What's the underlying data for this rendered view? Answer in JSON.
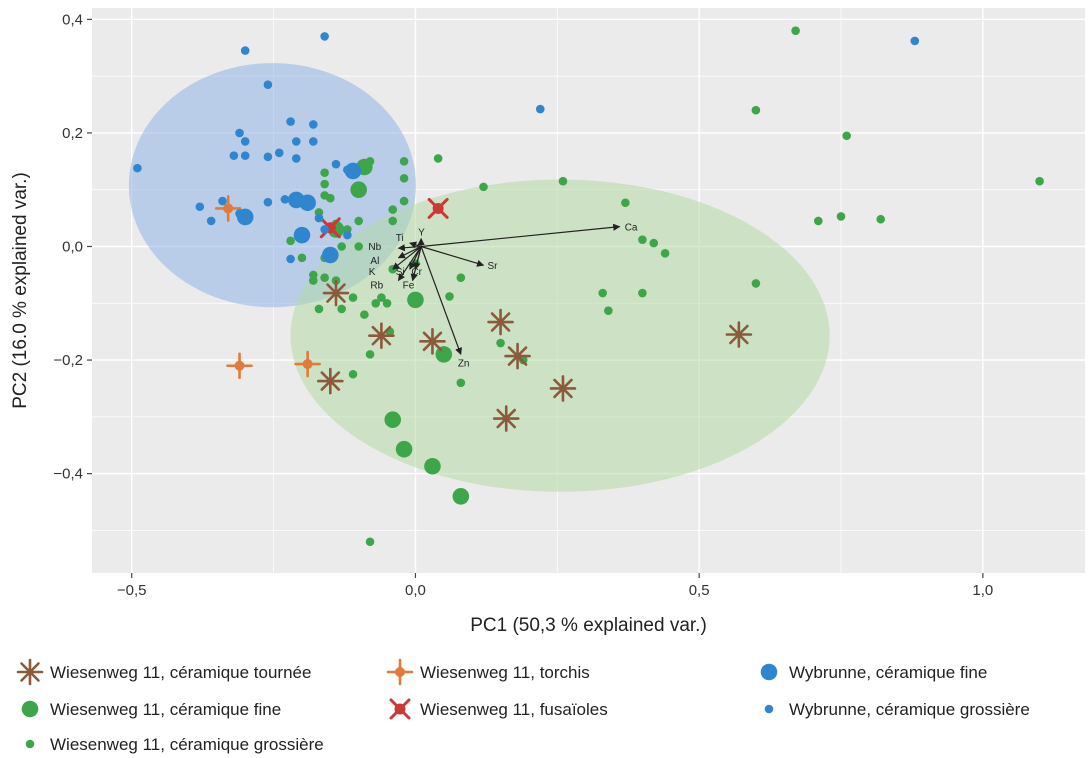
{
  "chart_data": {
    "type": "scatter",
    "xlabel": "PC1 (50,3 % explained var.)",
    "ylabel": "PC2 (16.0 % explained var.)",
    "xlim": [
      -0.57,
      1.18
    ],
    "ylim": [
      -0.575,
      0.42
    ],
    "xticks": [
      -0.5,
      0.0,
      0.5,
      1.0
    ],
    "xtick_labels": [
      "−0,5",
      "0,0",
      "0,5",
      "1,0"
    ],
    "yticks": [
      -0.4,
      -0.2,
      0.0,
      0.2,
      0.4
    ],
    "ytick_labels": [
      "−0,4",
      "−0,2",
      "0,0",
      "0,2",
      "0,4"
    ],
    "grid": true,
    "legend_position": "bottom",
    "ellipses": [
      {
        "group": "Wybrunne",
        "cx": -0.252,
        "cy": 0.108,
        "rx": 0.253,
        "ry": 0.215,
        "color": "#8fb4e6"
      },
      {
        "group": "Wiesenweg 11",
        "cx": 0.255,
        "cy": -0.157,
        "rx": 0.475,
        "ry": 0.275,
        "color": "#b5dba4"
      }
    ],
    "loadings": [
      {
        "label": "Ca",
        "x": 0.36,
        "y": 0.035
      },
      {
        "label": "Sr",
        "x": 0.12,
        "y": -0.033
      },
      {
        "label": "Zn",
        "x": 0.08,
        "y": -0.19
      },
      {
        "label": "Y",
        "x": 0.01,
        "y": 0.014
      },
      {
        "label": "Ti",
        "x": -0.01,
        "y": 0.006
      },
      {
        "label": "Nb",
        "x": -0.03,
        "y": -0.003
      },
      {
        "label": "Al",
        "x": -0.03,
        "y": -0.02
      },
      {
        "label": "K",
        "x": -0.04,
        "y": -0.04
      },
      {
        "label": "Si",
        "x": -0.01,
        "y": -0.04
      },
      {
        "label": "Cr",
        "x": 0.0,
        "y": -0.04
      },
      {
        "label": "Rb",
        "x": -0.03,
        "y": -0.06
      },
      {
        "label": "Fe",
        "x": -0.005,
        "y": -0.06
      }
    ],
    "series": [
      {
        "name": "Wiesenweg 11, céramique grossière",
        "marker": "dot-small",
        "color": "#3ea64a",
        "points": [
          [
            -0.08,
            0.15
          ],
          [
            -0.16,
            0.13
          ],
          [
            -0.16,
            0.11
          ],
          [
            -0.16,
            0.09
          ],
          [
            -0.15,
            0.085
          ],
          [
            -0.17,
            0.06
          ],
          [
            -0.14,
            0.04
          ],
          [
            -0.13,
            0.0
          ],
          [
            -0.1,
            0.0
          ],
          [
            -0.16,
            -0.02
          ],
          [
            -0.18,
            -0.05
          ],
          [
            -0.18,
            -0.06
          ],
          [
            -0.16,
            -0.055
          ],
          [
            -0.14,
            -0.06
          ],
          [
            -0.11,
            -0.09
          ],
          [
            -0.07,
            -0.1
          ],
          [
            -0.05,
            -0.1
          ],
          [
            -0.04,
            -0.04
          ],
          [
            -0.04,
            0.045
          ],
          [
            -0.04,
            0.065
          ],
          [
            -0.02,
            0.08
          ],
          [
            -0.02,
            0.12
          ],
          [
            -0.02,
            0.15
          ],
          [
            0.04,
            0.155
          ],
          [
            0.12,
            0.105
          ],
          [
            0.26,
            0.115
          ],
          [
            0.37,
            0.077
          ],
          [
            0.4,
            0.012
          ],
          [
            0.42,
            0.006
          ],
          [
            0.44,
            -0.012
          ],
          [
            0.33,
            -0.082
          ],
          [
            0.34,
            -0.113
          ],
          [
            0.4,
            -0.082
          ],
          [
            0.08,
            -0.055
          ],
          [
            0.06,
            -0.088
          ],
          [
            0.15,
            -0.17
          ],
          [
            0.08,
            -0.24
          ],
          [
            -0.11,
            -0.225
          ],
          [
            -0.08,
            -0.19
          ],
          [
            -0.08,
            -0.52
          ],
          [
            0.19,
            -0.2
          ],
          [
            0.6,
            0.24
          ],
          [
            0.67,
            0.38
          ],
          [
            0.76,
            0.195
          ],
          [
            0.6,
            -0.065
          ],
          [
            0.71,
            0.045
          ],
          [
            0.75,
            0.053
          ],
          [
            0.82,
            0.048
          ],
          [
            1.1,
            0.115
          ],
          [
            -0.22,
            0.01
          ],
          [
            -0.17,
            -0.11
          ],
          [
            -0.13,
            -0.11
          ],
          [
            -0.09,
            -0.12
          ],
          [
            0.0,
            -0.03
          ],
          [
            -0.2,
            -0.02
          ],
          [
            -0.06,
            -0.09
          ],
          [
            -0.045,
            -0.15
          ],
          [
            -0.12,
            0.03
          ],
          [
            -0.1,
            0.045
          ]
        ]
      },
      {
        "name": "Wiesenweg 11, céramique fine",
        "marker": "dot-large",
        "color": "#3ea64a",
        "points": [
          [
            -0.09,
            0.14
          ],
          [
            -0.14,
            0.03
          ],
          [
            0.0,
            -0.094
          ],
          [
            0.05,
            -0.19
          ],
          [
            -0.04,
            -0.305
          ],
          [
            -0.02,
            -0.357
          ],
          [
            0.03,
            -0.387
          ],
          [
            0.08,
            -0.44
          ],
          [
            -0.1,
            0.1
          ]
        ]
      },
      {
        "name": "Wiesenweg 11, céramique tournée",
        "marker": "asterisk",
        "color": "#8a5a3a",
        "points": [
          [
            -0.14,
            -0.082
          ],
          [
            -0.06,
            -0.157
          ],
          [
            0.03,
            -0.167
          ],
          [
            0.15,
            -0.133
          ],
          [
            0.18,
            -0.193
          ],
          [
            -0.15,
            -0.237
          ],
          [
            0.16,
            -0.303
          ],
          [
            0.26,
            -0.25
          ],
          [
            0.57,
            -0.155
          ]
        ]
      },
      {
        "name": "Wiesenweg 11, torchis",
        "marker": "star4",
        "color": "#e27a3b",
        "points": [
          [
            -0.33,
            0.067
          ],
          [
            -0.31,
            -0.21
          ],
          [
            -0.19,
            -0.207
          ]
        ]
      },
      {
        "name": "Wiesenweg 11, fusaïoles",
        "marker": "xcross",
        "color": "#cf3737",
        "points": [
          [
            0.04,
            0.067
          ],
          [
            -0.15,
            0.033
          ]
        ]
      },
      {
        "name": "Wybrunne, céramique fine",
        "marker": "dot-large",
        "color": "#2f86cf",
        "points": [
          [
            -0.3,
            0.052
          ],
          [
            -0.21,
            0.082
          ],
          [
            -0.19,
            0.077
          ],
          [
            -0.2,
            0.02
          ],
          [
            -0.15,
            -0.015
          ],
          [
            -0.11,
            0.133
          ]
        ]
      },
      {
        "name": "Wybrunne, céramique grossière",
        "marker": "dot-small",
        "color": "#2f86cf",
        "points": [
          [
            -0.3,
            0.345
          ],
          [
            -0.16,
            0.37
          ],
          [
            -0.26,
            0.285
          ],
          [
            -0.31,
            0.2
          ],
          [
            -0.3,
            0.185
          ],
          [
            -0.22,
            0.22
          ],
          [
            -0.18,
            0.215
          ],
          [
            -0.21,
            0.185
          ],
          [
            -0.18,
            0.185
          ],
          [
            -0.24,
            0.165
          ],
          [
            -0.32,
            0.16
          ],
          [
            -0.3,
            0.16
          ],
          [
            -0.26,
            0.158
          ],
          [
            -0.21,
            0.155
          ],
          [
            -0.14,
            0.145
          ],
          [
            -0.12,
            0.135
          ],
          [
            -0.38,
            0.07
          ],
          [
            -0.34,
            0.08
          ],
          [
            -0.36,
            0.045
          ],
          [
            -0.31,
            0.058
          ],
          [
            -0.26,
            0.078
          ],
          [
            -0.23,
            0.083
          ],
          [
            -0.17,
            0.05
          ],
          [
            -0.22,
            -0.022
          ],
          [
            -0.49,
            0.138
          ],
          [
            0.22,
            0.242
          ],
          [
            0.88,
            0.362
          ],
          [
            -0.16,
            0.03
          ],
          [
            -0.12,
            0.02
          ]
        ]
      }
    ]
  },
  "legend": [
    {
      "label": "Wiesenweg 11, céramique tournée",
      "marker": "asterisk",
      "color": "#8a5a3a"
    },
    {
      "label": "Wiesenweg 11, torchis",
      "marker": "star4",
      "color": "#e27a3b"
    },
    {
      "label": "Wybrunne, céramique fine",
      "marker": "dot-large",
      "color": "#2f86cf"
    },
    {
      "label": "Wiesenweg 11, céramique fine",
      "marker": "dot-large",
      "color": "#3ea64a"
    },
    {
      "label": "Wiesenweg 11, fusaïoles",
      "marker": "xcross",
      "color": "#cf3737"
    },
    {
      "label": "Wybrunne, céramique grossière",
      "marker": "dot-small",
      "color": "#2f86cf"
    },
    {
      "label": "Wiesenweg 11, céramique grossière",
      "marker": "dot-small",
      "color": "#3ea64a"
    }
  ]
}
